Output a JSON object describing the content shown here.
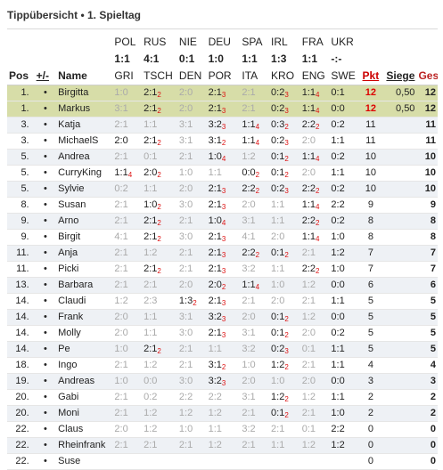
{
  "title": "Tippübersicht • 1. Spieltag",
  "columns": {
    "pos": "Pos",
    "change": "+/-",
    "name": "Name",
    "pkt": "Pkt",
    "siege": "Siege",
    "ges": "Ges"
  },
  "matches": [
    {
      "home": "POL",
      "score": "1:1",
      "away": "GRI"
    },
    {
      "home": "RUS",
      "score": "4:1",
      "away": "TSCH"
    },
    {
      "home": "NIE",
      "score": "0:1",
      "away": "DEN"
    },
    {
      "home": "DEU",
      "score": "1:0",
      "away": "POR"
    },
    {
      "home": "SPA",
      "score": "1:1",
      "away": "ITA"
    },
    {
      "home": "IRL",
      "score": "1:3",
      "away": "KRO"
    },
    {
      "home": "FRA",
      "score": "1:1",
      "away": "ENG"
    },
    {
      "home": "UKR",
      "score": "-:-",
      "away": "SWE"
    }
  ],
  "rows": [
    {
      "pos": "1.",
      "chg": "•",
      "name": "Birgitta",
      "hl": true,
      "tips": [
        [
          "1:0",
          "",
          1
        ],
        [
          "2:1",
          "2",
          0
        ],
        [
          "2:0",
          "",
          1
        ],
        [
          "2:1",
          "3",
          0
        ],
        [
          "2:1",
          "",
          1
        ],
        [
          "0:2",
          "3",
          0
        ],
        [
          "1:1",
          "4",
          0
        ],
        [
          "0:1",
          "",
          0
        ]
      ],
      "pkt": "12",
      "siege": "0,50",
      "ges": "12"
    },
    {
      "pos": "1.",
      "chg": "•",
      "name": "Markus",
      "hl": true,
      "tips": [
        [
          "3:1",
          "",
          1
        ],
        [
          "2:1",
          "2",
          0
        ],
        [
          "2:0",
          "",
          1
        ],
        [
          "2:1",
          "3",
          0
        ],
        [
          "2:1",
          "",
          1
        ],
        [
          "0:2",
          "3",
          0
        ],
        [
          "1:1",
          "4",
          0
        ],
        [
          "0:0",
          "",
          0
        ]
      ],
      "pkt": "12",
      "siege": "0,50",
      "ges": "12"
    },
    {
      "pos": "3.",
      "chg": "•",
      "name": "Katja",
      "tips": [
        [
          "2:1",
          "",
          1
        ],
        [
          "1:1",
          "",
          1
        ],
        [
          "3:1",
          "",
          1
        ],
        [
          "3:2",
          "3",
          0
        ],
        [
          "1:1",
          "4",
          0
        ],
        [
          "0:3",
          "2",
          0
        ],
        [
          "2:2",
          "2",
          0
        ],
        [
          "0:2",
          "",
          0
        ]
      ],
      "pkt": "11",
      "siege": "",
      "ges": "11"
    },
    {
      "pos": "3.",
      "chg": "•",
      "name": "MichaelS",
      "tips": [
        [
          "2:0",
          "",
          0
        ],
        [
          "2:1",
          "2",
          0
        ],
        [
          "3:1",
          "",
          1
        ],
        [
          "3:1",
          "2",
          0
        ],
        [
          "1:1",
          "4",
          0
        ],
        [
          "0:2",
          "3",
          0
        ],
        [
          "2:0",
          "",
          1
        ],
        [
          "1:1",
          "",
          0
        ]
      ],
      "pkt": "11",
      "siege": "",
      "ges": "11"
    },
    {
      "pos": "5.",
      "chg": "•",
      "name": "Andrea",
      "tips": [
        [
          "2:1",
          "",
          1
        ],
        [
          "0:1",
          "",
          1
        ],
        [
          "2:1",
          "",
          1
        ],
        [
          "1:0",
          "4",
          0
        ],
        [
          "1:2",
          "",
          1
        ],
        [
          "0:1",
          "2",
          0
        ],
        [
          "1:1",
          "4",
          0
        ],
        [
          "0:2",
          "",
          0
        ]
      ],
      "pkt": "10",
      "siege": "",
      "ges": "10"
    },
    {
      "pos": "5.",
      "chg": "•",
      "name": "CurryKing",
      "tips": [
        [
          "1:1",
          "4",
          0
        ],
        [
          "2:0",
          "2",
          0
        ],
        [
          "1:0",
          "",
          1
        ],
        [
          "1:1",
          "",
          1
        ],
        [
          "0:0",
          "2",
          0
        ],
        [
          "0:1",
          "2",
          0
        ],
        [
          "2:0",
          "",
          1
        ],
        [
          "1:1",
          "",
          0
        ]
      ],
      "pkt": "10",
      "siege": "",
      "ges": "10"
    },
    {
      "pos": "5.",
      "chg": "•",
      "name": "Sylvie",
      "tips": [
        [
          "0:2",
          "",
          1
        ],
        [
          "1:1",
          "",
          1
        ],
        [
          "2:0",
          "",
          1
        ],
        [
          "2:1",
          "3",
          0
        ],
        [
          "2:2",
          "2",
          0
        ],
        [
          "0:2",
          "3",
          0
        ],
        [
          "2:2",
          "2",
          0
        ],
        [
          "0:2",
          "",
          0
        ]
      ],
      "pkt": "10",
      "siege": "",
      "ges": "10"
    },
    {
      "pos": "8.",
      "chg": "•",
      "name": "Susan",
      "tips": [
        [
          "2:1",
          "",
          1
        ],
        [
          "1:0",
          "2",
          0
        ],
        [
          "3:0",
          "",
          1
        ],
        [
          "2:1",
          "3",
          0
        ],
        [
          "2:0",
          "",
          1
        ],
        [
          "1:1",
          "",
          1
        ],
        [
          "1:1",
          "4",
          0
        ],
        [
          "2:2",
          "",
          0
        ]
      ],
      "pkt": "9",
      "siege": "",
      "ges": "9"
    },
    {
      "pos": "9.",
      "chg": "•",
      "name": "Arno",
      "tips": [
        [
          "2:1",
          "",
          1
        ],
        [
          "2:1",
          "2",
          0
        ],
        [
          "2:1",
          "",
          1
        ],
        [
          "1:0",
          "4",
          0
        ],
        [
          "3:1",
          "",
          1
        ],
        [
          "1:1",
          "",
          1
        ],
        [
          "2:2",
          "2",
          0
        ],
        [
          "0:2",
          "",
          0
        ]
      ],
      "pkt": "8",
      "siege": "",
      "ges": "8"
    },
    {
      "pos": "9.",
      "chg": "•",
      "name": "Birgit",
      "tips": [
        [
          "4:1",
          "",
          1
        ],
        [
          "2:1",
          "2",
          0
        ],
        [
          "3:0",
          "",
          1
        ],
        [
          "2:1",
          "3",
          0
        ],
        [
          "4:1",
          "",
          1
        ],
        [
          "2:0",
          "",
          1
        ],
        [
          "1:1",
          "4",
          0
        ],
        [
          "1:0",
          "",
          0
        ]
      ],
      "pkt": "8",
      "siege": "",
      "ges": "8"
    },
    {
      "pos": "11.",
      "chg": "•",
      "name": "Anja",
      "tips": [
        [
          "2:1",
          "",
          1
        ],
        [
          "1:2",
          "",
          1
        ],
        [
          "2:1",
          "",
          1
        ],
        [
          "2:1",
          "3",
          0
        ],
        [
          "2:2",
          "2",
          0
        ],
        [
          "0:1",
          "2",
          0
        ],
        [
          "2:1",
          "",
          1
        ],
        [
          "1:2",
          "",
          0
        ]
      ],
      "pkt": "7",
      "siege": "",
      "ges": "7"
    },
    {
      "pos": "11.",
      "chg": "•",
      "name": "Picki",
      "tips": [
        [
          "2:1",
          "",
          1
        ],
        [
          "2:1",
          "2",
          0
        ],
        [
          "2:1",
          "",
          1
        ],
        [
          "2:1",
          "3",
          0
        ],
        [
          "3:2",
          "",
          1
        ],
        [
          "1:1",
          "",
          1
        ],
        [
          "2:2",
          "2",
          0
        ],
        [
          "1:0",
          "",
          0
        ]
      ],
      "pkt": "7",
      "siege": "",
      "ges": "7"
    },
    {
      "pos": "13.",
      "chg": "•",
      "name": "Barbara",
      "tips": [
        [
          "2:1",
          "",
          1
        ],
        [
          "2:1",
          "",
          1
        ],
        [
          "2:0",
          "",
          1
        ],
        [
          "2:0",
          "2",
          0
        ],
        [
          "1:1",
          "4",
          0
        ],
        [
          "1:0",
          "",
          1
        ],
        [
          "1:2",
          "",
          1
        ],
        [
          "0:0",
          "",
          0
        ]
      ],
      "pkt": "6",
      "siege": "",
      "ges": "6"
    },
    {
      "pos": "14.",
      "chg": "•",
      "name": "Claudi",
      "tips": [
        [
          "1:2",
          "",
          1
        ],
        [
          "2:3",
          "",
          1
        ],
        [
          "1:3",
          "2",
          0
        ],
        [
          "2:1",
          "3",
          0
        ],
        [
          "2:1",
          "",
          1
        ],
        [
          "2:0",
          "",
          1
        ],
        [
          "2:1",
          "",
          1
        ],
        [
          "1:1",
          "",
          0
        ]
      ],
      "pkt": "5",
      "siege": "",
      "ges": "5"
    },
    {
      "pos": "14.",
      "chg": "•",
      "name": "Frank",
      "tips": [
        [
          "2:0",
          "",
          1
        ],
        [
          "1:1",
          "",
          1
        ],
        [
          "3:1",
          "",
          1
        ],
        [
          "3:2",
          "3",
          0
        ],
        [
          "2:0",
          "",
          1
        ],
        [
          "0:1",
          "2",
          0
        ],
        [
          "1:2",
          "",
          1
        ],
        [
          "0:0",
          "",
          0
        ]
      ],
      "pkt": "5",
      "siege": "",
      "ges": "5"
    },
    {
      "pos": "14.",
      "chg": "•",
      "name": "Molly",
      "tips": [
        [
          "2:0",
          "",
          1
        ],
        [
          "1:1",
          "",
          1
        ],
        [
          "3:0",
          "",
          1
        ],
        [
          "2:1",
          "3",
          0
        ],
        [
          "3:1",
          "",
          1
        ],
        [
          "0:1",
          "2",
          0
        ],
        [
          "2:0",
          "",
          1
        ],
        [
          "0:2",
          "",
          0
        ]
      ],
      "pkt": "5",
      "siege": "",
      "ges": "5"
    },
    {
      "pos": "14.",
      "chg": "•",
      "name": "Pe",
      "tips": [
        [
          "1:0",
          "",
          1
        ],
        [
          "2:1",
          "2",
          0
        ],
        [
          "2:1",
          "",
          1
        ],
        [
          "1:1",
          "",
          1
        ],
        [
          "3:2",
          "",
          1
        ],
        [
          "0:2",
          "3",
          0
        ],
        [
          "0:1",
          "",
          1
        ],
        [
          "1:1",
          "",
          0
        ]
      ],
      "pkt": "5",
      "siege": "",
      "ges": "5"
    },
    {
      "pos": "18.",
      "chg": "•",
      "name": "Ingo",
      "tips": [
        [
          "2:1",
          "",
          1
        ],
        [
          "1:2",
          "",
          1
        ],
        [
          "2:1",
          "",
          1
        ],
        [
          "3:1",
          "2",
          0
        ],
        [
          "1:0",
          "",
          1
        ],
        [
          "1:2",
          "2",
          0
        ],
        [
          "2:1",
          "",
          1
        ],
        [
          "1:1",
          "",
          0
        ]
      ],
      "pkt": "4",
      "siege": "",
      "ges": "4"
    },
    {
      "pos": "19.",
      "chg": "•",
      "name": "Andreas",
      "tips": [
        [
          "1:0",
          "",
          1
        ],
        [
          "0:0",
          "",
          1
        ],
        [
          "3:0",
          "",
          1
        ],
        [
          "3:2",
          "3",
          0
        ],
        [
          "2:0",
          "",
          1
        ],
        [
          "1:0",
          "",
          1
        ],
        [
          "2:0",
          "",
          1
        ],
        [
          "0:0",
          "",
          0
        ]
      ],
      "pkt": "3",
      "siege": "",
      "ges": "3"
    },
    {
      "pos": "20.",
      "chg": "•",
      "name": "Gabi",
      "tips": [
        [
          "2:1",
          "",
          1
        ],
        [
          "0:2",
          "",
          1
        ],
        [
          "2:2",
          "",
          1
        ],
        [
          "2:2",
          "",
          1
        ],
        [
          "3:1",
          "",
          1
        ],
        [
          "1:2",
          "2",
          0
        ],
        [
          "1:2",
          "",
          1
        ],
        [
          "1:1",
          "",
          0
        ]
      ],
      "pkt": "2",
      "siege": "",
      "ges": "2"
    },
    {
      "pos": "20.",
      "chg": "•",
      "name": "Moni",
      "tips": [
        [
          "2:1",
          "",
          1
        ],
        [
          "1:2",
          "",
          1
        ],
        [
          "1:2",
          "",
          1
        ],
        [
          "1:2",
          "",
          1
        ],
        [
          "2:1",
          "",
          1
        ],
        [
          "0:1",
          "2",
          0
        ],
        [
          "2:1",
          "",
          1
        ],
        [
          "1:0",
          "",
          0
        ]
      ],
      "pkt": "2",
      "siege": "",
      "ges": "2"
    },
    {
      "pos": "22.",
      "chg": "•",
      "name": "Claus",
      "tips": [
        [
          "2:0",
          "",
          1
        ],
        [
          "1:2",
          "",
          1
        ],
        [
          "1:0",
          "",
          1
        ],
        [
          "1:1",
          "",
          1
        ],
        [
          "3:2",
          "",
          1
        ],
        [
          "2:1",
          "",
          1
        ],
        [
          "0:1",
          "",
          1
        ],
        [
          "2:2",
          "",
          0
        ]
      ],
      "pkt": "0",
      "siege": "",
      "ges": "0"
    },
    {
      "pos": "22.",
      "chg": "•",
      "name": "Rheinfrank",
      "tips": [
        [
          "2:1",
          "",
          1
        ],
        [
          "2:1",
          "",
          1
        ],
        [
          "2:1",
          "",
          1
        ],
        [
          "1:2",
          "",
          1
        ],
        [
          "2:1",
          "",
          1
        ],
        [
          "1:1",
          "",
          1
        ],
        [
          "1:2",
          "",
          1
        ],
        [
          "1:2",
          "",
          0
        ]
      ],
      "pkt": "0",
      "siege": "",
      "ges": "0"
    },
    {
      "pos": "22.",
      "chg": "•",
      "name": "Suse",
      "tips": [
        [
          "",
          "",
          1
        ],
        [
          "",
          "",
          1
        ],
        [
          "",
          "",
          1
        ],
        [
          "",
          "",
          1
        ],
        [
          "",
          "",
          1
        ],
        [
          "",
          "",
          1
        ],
        [
          "",
          "",
          1
        ],
        [
          "",
          "",
          0
        ]
      ],
      "pkt": "0",
      "siege": "",
      "ges": "0"
    }
  ]
}
